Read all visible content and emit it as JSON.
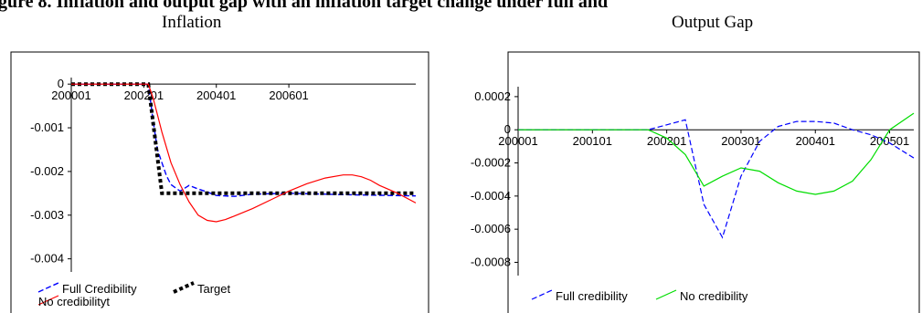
{
  "header": {
    "cap_left": "gure 8. Inflation and output gap with an inflation target change under full and",
    "title_left": "Inflation",
    "title_right": "Output Gap"
  },
  "chart_data": [
    {
      "type": "line",
      "title": "Inflation",
      "x_ticks": [
        "200001",
        "200201",
        "200401",
        "200601"
      ],
      "y_ticks": [
        "0",
        "-0.001",
        "-0.002",
        "-0.003",
        "-0.004"
      ],
      "ylim": [
        -0.0043,
        0.00015
      ],
      "xlim": [
        0,
        38
      ],
      "legend_placement": "bottom-left",
      "series": [
        {
          "name": "Full Credibility",
          "color": "#0000ff",
          "dash": "dashed",
          "x": [
            0,
            6,
            8.5,
            9,
            9.5,
            10,
            10.5,
            11,
            12,
            13,
            14,
            15,
            16,
            18,
            20,
            24,
            30,
            38
          ],
          "y": [
            0,
            0,
            0,
            -0.0008,
            -0.0015,
            -0.0018,
            -0.0021,
            -0.0023,
            -0.00245,
            -0.00232,
            -0.0024,
            -0.00247,
            -0.00255,
            -0.00257,
            -0.00252,
            -0.0025,
            -0.00253,
            -0.00256
          ]
        },
        {
          "name": "Target",
          "color": "#000000",
          "dash": "dotted",
          "x": [
            0,
            8.5,
            10,
            38
          ],
          "y": [
            0,
            0,
            -0.0025,
            -0.0025
          ]
        },
        {
          "name": "No credibilityt",
          "color": "#ff0000",
          "dash": "solid",
          "x": [
            0,
            8.5,
            9,
            9.5,
            10,
            11,
            12,
            13,
            14,
            15,
            16,
            17,
            18,
            20,
            22,
            24,
            26,
            28,
            30,
            31,
            32,
            33,
            34,
            36,
            38
          ],
          "y": [
            0,
            0,
            -0.0003,
            -0.0007,
            -0.0011,
            -0.0018,
            -0.0023,
            -0.0027,
            -0.003,
            -0.00312,
            -0.00315,
            -0.0031,
            -0.00302,
            -0.00285,
            -0.00265,
            -0.00245,
            -0.00228,
            -0.00215,
            -0.00208,
            -0.00208,
            -0.00212,
            -0.0022,
            -0.00232,
            -0.0025,
            -0.00272
          ]
        }
      ]
    },
    {
      "type": "line",
      "title": "Output Gap",
      "x_ticks": [
        "200001",
        "200101",
        "200201",
        "200301",
        "200401",
        "200501"
      ],
      "y_ticks": [
        "0.0002",
        "0",
        "-0.0002",
        "-0.0004",
        "-0.0006",
        "-0.0008"
      ],
      "ylim": [
        -0.00088,
        0.00026
      ],
      "xlim": [
        0,
        21.3
      ],
      "legend_placement": "bottom-left",
      "series": [
        {
          "name": "Full credibility",
          "color": "#0000ff",
          "dash": "dashed",
          "x": [
            0,
            7,
            8,
            9,
            10,
            11,
            12,
            13,
            14,
            15,
            16,
            17,
            18,
            19,
            20,
            21.3
          ],
          "y": [
            0,
            0,
            3e-05,
            6e-05,
            -0.00045,
            -0.00065,
            -0.00028,
            -7e-05,
            2e-05,
            5e-05,
            5e-05,
            4e-05,
            0,
            -3e-05,
            -8e-05,
            -0.00017
          ]
        },
        {
          "name": "No credibility",
          "color": "#00dd00",
          "dash": "solid",
          "x": [
            0,
            7,
            8,
            9,
            10,
            11,
            12,
            13,
            14,
            15,
            16,
            17,
            18,
            19,
            20,
            21.3
          ],
          "y": [
            0,
            0,
            -5e-05,
            -0.00015,
            -0.00034,
            -0.00028,
            -0.00023,
            -0.00025,
            -0.00032,
            -0.00037,
            -0.00039,
            -0.00037,
            -0.00031,
            -0.00018,
            0,
            0.0001
          ]
        }
      ]
    }
  ]
}
